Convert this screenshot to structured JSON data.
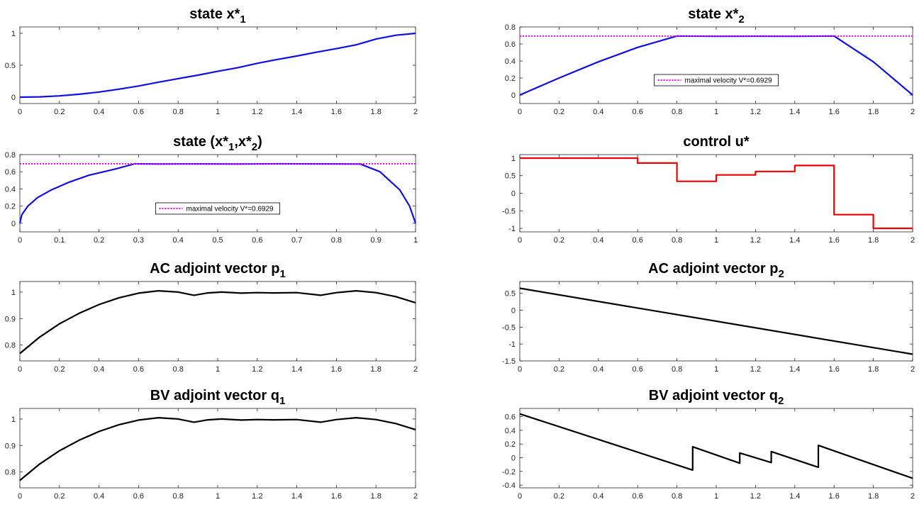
{
  "chart_data": [
    {
      "type": "line",
      "title": {
        "main": "state x*",
        "sub": "1",
        "rest": ""
      },
      "xlim": [
        0,
        2
      ],
      "ylim": [
        -0.1,
        1.1
      ],
      "xticks": [
        "0",
        "0.2",
        "0.4",
        "0.6",
        "0.8",
        "1",
        "1.2",
        "1.4",
        "1.6",
        "1.8",
        "2"
      ],
      "yticks": [
        "0",
        "0.5",
        "1"
      ],
      "series": [
        {
          "color": "#1010e0",
          "style": "solid",
          "x": [
            0,
            0.1,
            0.2,
            0.3,
            0.4,
            0.5,
            0.6,
            0.7,
            0.8,
            0.9,
            1.0,
            1.1,
            1.2,
            1.3,
            1.4,
            1.5,
            1.6,
            1.7,
            1.8,
            1.9,
            2.0
          ],
          "y": [
            0,
            0.005,
            0.02,
            0.045,
            0.08,
            0.125,
            0.175,
            0.235,
            0.29,
            0.345,
            0.405,
            0.46,
            0.53,
            0.59,
            0.645,
            0.705,
            0.76,
            0.82,
            0.91,
            0.97,
            1.0
          ]
        }
      ]
    },
    {
      "type": "line",
      "title": {
        "main": "state x*",
        "sub": "2",
        "rest": ""
      },
      "xlim": [
        0,
        2
      ],
      "ylim": [
        -0.1,
        0.8
      ],
      "xticks": [
        "0",
        "0.2",
        "0.4",
        "0.6",
        "0.8",
        "1",
        "1.2",
        "1.4",
        "1.6",
        "1.8",
        "2"
      ],
      "yticks": [
        "0",
        "0.2",
        "0.4",
        "0.6",
        "0.8"
      ],
      "legend": {
        "label": "maximal velocity V*=0.6929",
        "placement": "lower-center"
      },
      "series": [
        {
          "color": "#1010e0",
          "style": "solid",
          "x": [
            0,
            0.2,
            0.4,
            0.6,
            0.8,
            1.0,
            1.2,
            1.4,
            1.6,
            1.8,
            2.0
          ],
          "y": [
            0,
            0.2,
            0.39,
            0.56,
            0.693,
            0.69,
            0.692,
            0.69,
            0.693,
            0.39,
            0
          ]
        },
        {
          "color": "#ff00ff",
          "style": "dotted",
          "x": [
            0,
            2
          ],
          "y": [
            0.6929,
            0.6929
          ]
        }
      ]
    },
    {
      "type": "line",
      "title": {
        "main": "state (x*",
        "sub": "1",
        "mid": ",x*",
        "sub2": "2",
        "rest": ")"
      },
      "xlim": [
        0,
        1
      ],
      "ylim": [
        -0.1,
        0.8
      ],
      "xticks": [
        "0",
        "0.1",
        "0.2",
        "0.3",
        "0.4",
        "0.5",
        "0.6",
        "0.7",
        "0.8",
        "0.9",
        "1"
      ],
      "yticks": [
        "0",
        "0.2",
        "0.4",
        "0.6",
        "0.8"
      ],
      "legend": {
        "label": "maximal velocity V*=0.6929",
        "placement": "lower-center"
      },
      "series": [
        {
          "color": "#1010e0",
          "style": "solid",
          "x": [
            0,
            0.005,
            0.02,
            0.045,
            0.08,
            0.125,
            0.175,
            0.24,
            0.29,
            0.35,
            0.45,
            0.55,
            0.65,
            0.76,
            0.86,
            0.91,
            0.96,
            0.985,
            1.0
          ],
          "y": [
            0,
            0.1,
            0.2,
            0.3,
            0.39,
            0.48,
            0.56,
            0.63,
            0.693,
            0.69,
            0.692,
            0.69,
            0.693,
            0.692,
            0.69,
            0.6,
            0.39,
            0.2,
            0
          ]
        },
        {
          "color": "#ff00ff",
          "style": "dotted",
          "x": [
            0,
            1
          ],
          "y": [
            0.6929,
            0.6929
          ]
        }
      ]
    },
    {
      "type": "line",
      "title": {
        "main": "control u*",
        "sub": "",
        "rest": ""
      },
      "xlim": [
        0,
        2
      ],
      "ylim": [
        -1.1,
        1.1
      ],
      "xticks": [
        "0",
        "0.2",
        "0.4",
        "0.6",
        "0.8",
        "1",
        "1.2",
        "1.4",
        "1.6",
        "1.8",
        "2"
      ],
      "yticks": [
        "-1",
        "-0.5",
        "0",
        "0.5",
        "1"
      ],
      "series": [
        {
          "color": "#ee0000",
          "style": "solid",
          "x": [
            0,
            0.6,
            0.6,
            0.8,
            0.8,
            1.0,
            1.0,
            1.2,
            1.2,
            1.4,
            1.4,
            1.6,
            1.6,
            1.8,
            1.8,
            2.0
          ],
          "y": [
            1,
            1,
            0.86,
            0.86,
            0.34,
            0.34,
            0.52,
            0.52,
            0.62,
            0.62,
            0.79,
            0.79,
            -0.61,
            -0.61,
            -1,
            -1
          ]
        }
      ]
    },
    {
      "type": "line",
      "title": {
        "main": "AC adjoint vector p",
        "sub": "1",
        "rest": ""
      },
      "xlim": [
        0,
        2
      ],
      "ylim": [
        0.74,
        1.04
      ],
      "xticks": [
        "0",
        "0.2",
        "0.4",
        "0.6",
        "0.8",
        "1",
        "1.2",
        "1.4",
        "1.6",
        "1.8",
        "2"
      ],
      "yticks": [
        "0.8",
        "0.9",
        "1"
      ],
      "series": [
        {
          "color": "#000000",
          "style": "solid",
          "x": [
            0,
            0.1,
            0.2,
            0.3,
            0.4,
            0.5,
            0.6,
            0.7,
            0.8,
            0.88,
            0.95,
            1.02,
            1.12,
            1.2,
            1.28,
            1.4,
            1.52,
            1.6,
            1.7,
            1.8,
            1.9,
            2.0
          ],
          "y": [
            0.768,
            0.83,
            0.88,
            0.92,
            0.953,
            0.978,
            0.996,
            1.005,
            1.0,
            0.988,
            0.997,
            1.0,
            0.996,
            0.998,
            0.997,
            0.998,
            0.988,
            0.998,
            1.005,
            0.998,
            0.983,
            0.96
          ]
        }
      ]
    },
    {
      "type": "line",
      "title": {
        "main": "AC adjoint vector p",
        "sub": "2",
        "rest": ""
      },
      "xlim": [
        0,
        2
      ],
      "ylim": [
        -1.5,
        0.85
      ],
      "xticks": [
        "0",
        "0.2",
        "0.4",
        "0.6",
        "0.8",
        "1",
        "1.2",
        "1.4",
        "1.6",
        "1.8",
        "2"
      ],
      "yticks": [
        "-1.5",
        "-1",
        "-0.5",
        "0",
        "0.5"
      ],
      "series": [
        {
          "color": "#000000",
          "style": "solid",
          "x": [
            0,
            2
          ],
          "y": [
            0.65,
            -1.3
          ]
        }
      ]
    },
    {
      "type": "line",
      "title": {
        "main": "BV adjoint vector q",
        "sub": "1",
        "rest": ""
      },
      "xlim": [
        0,
        2
      ],
      "ylim": [
        0.74,
        1.04
      ],
      "xticks": [
        "0",
        "0.2",
        "0.4",
        "0.6",
        "0.8",
        "1",
        "1.2",
        "1.4",
        "1.6",
        "1.8",
        "2"
      ],
      "yticks": [
        "0.8",
        "0.9",
        "1"
      ],
      "series": [
        {
          "color": "#000000",
          "style": "solid",
          "x": [
            0,
            0.1,
            0.2,
            0.3,
            0.4,
            0.5,
            0.6,
            0.7,
            0.8,
            0.88,
            0.95,
            1.02,
            1.12,
            1.2,
            1.28,
            1.4,
            1.52,
            1.6,
            1.7,
            1.8,
            1.9,
            2.0
          ],
          "y": [
            0.768,
            0.83,
            0.88,
            0.92,
            0.953,
            0.978,
            0.996,
            1.005,
            1.0,
            0.988,
            0.997,
            1.0,
            0.996,
            0.998,
            0.997,
            0.998,
            0.988,
            0.998,
            1.005,
            0.998,
            0.983,
            0.96
          ]
        }
      ]
    },
    {
      "type": "line",
      "title": {
        "main": "BV adjoint vector q",
        "sub": "2",
        "rest": ""
      },
      "xlim": [
        0,
        2
      ],
      "ylim": [
        -0.44,
        0.72
      ],
      "xticks": [
        "0",
        "0.2",
        "0.4",
        "0.6",
        "0.8",
        "1",
        "1.2",
        "1.4",
        "1.6",
        "1.8",
        "2"
      ],
      "yticks": [
        "-0.4",
        "-0.2",
        "0",
        "0.2",
        "0.4",
        "0.6"
      ],
      "series": [
        {
          "color": "#000000",
          "style": "solid",
          "x": [
            0,
            0.88,
            0.88,
            1.12,
            1.12,
            1.28,
            1.28,
            1.52,
            1.52,
            2.0
          ],
          "y": [
            0.64,
            -0.18,
            0.16,
            -0.08,
            0.07,
            -0.07,
            0.09,
            -0.14,
            0.18,
            -0.3
          ]
        }
      ]
    }
  ]
}
